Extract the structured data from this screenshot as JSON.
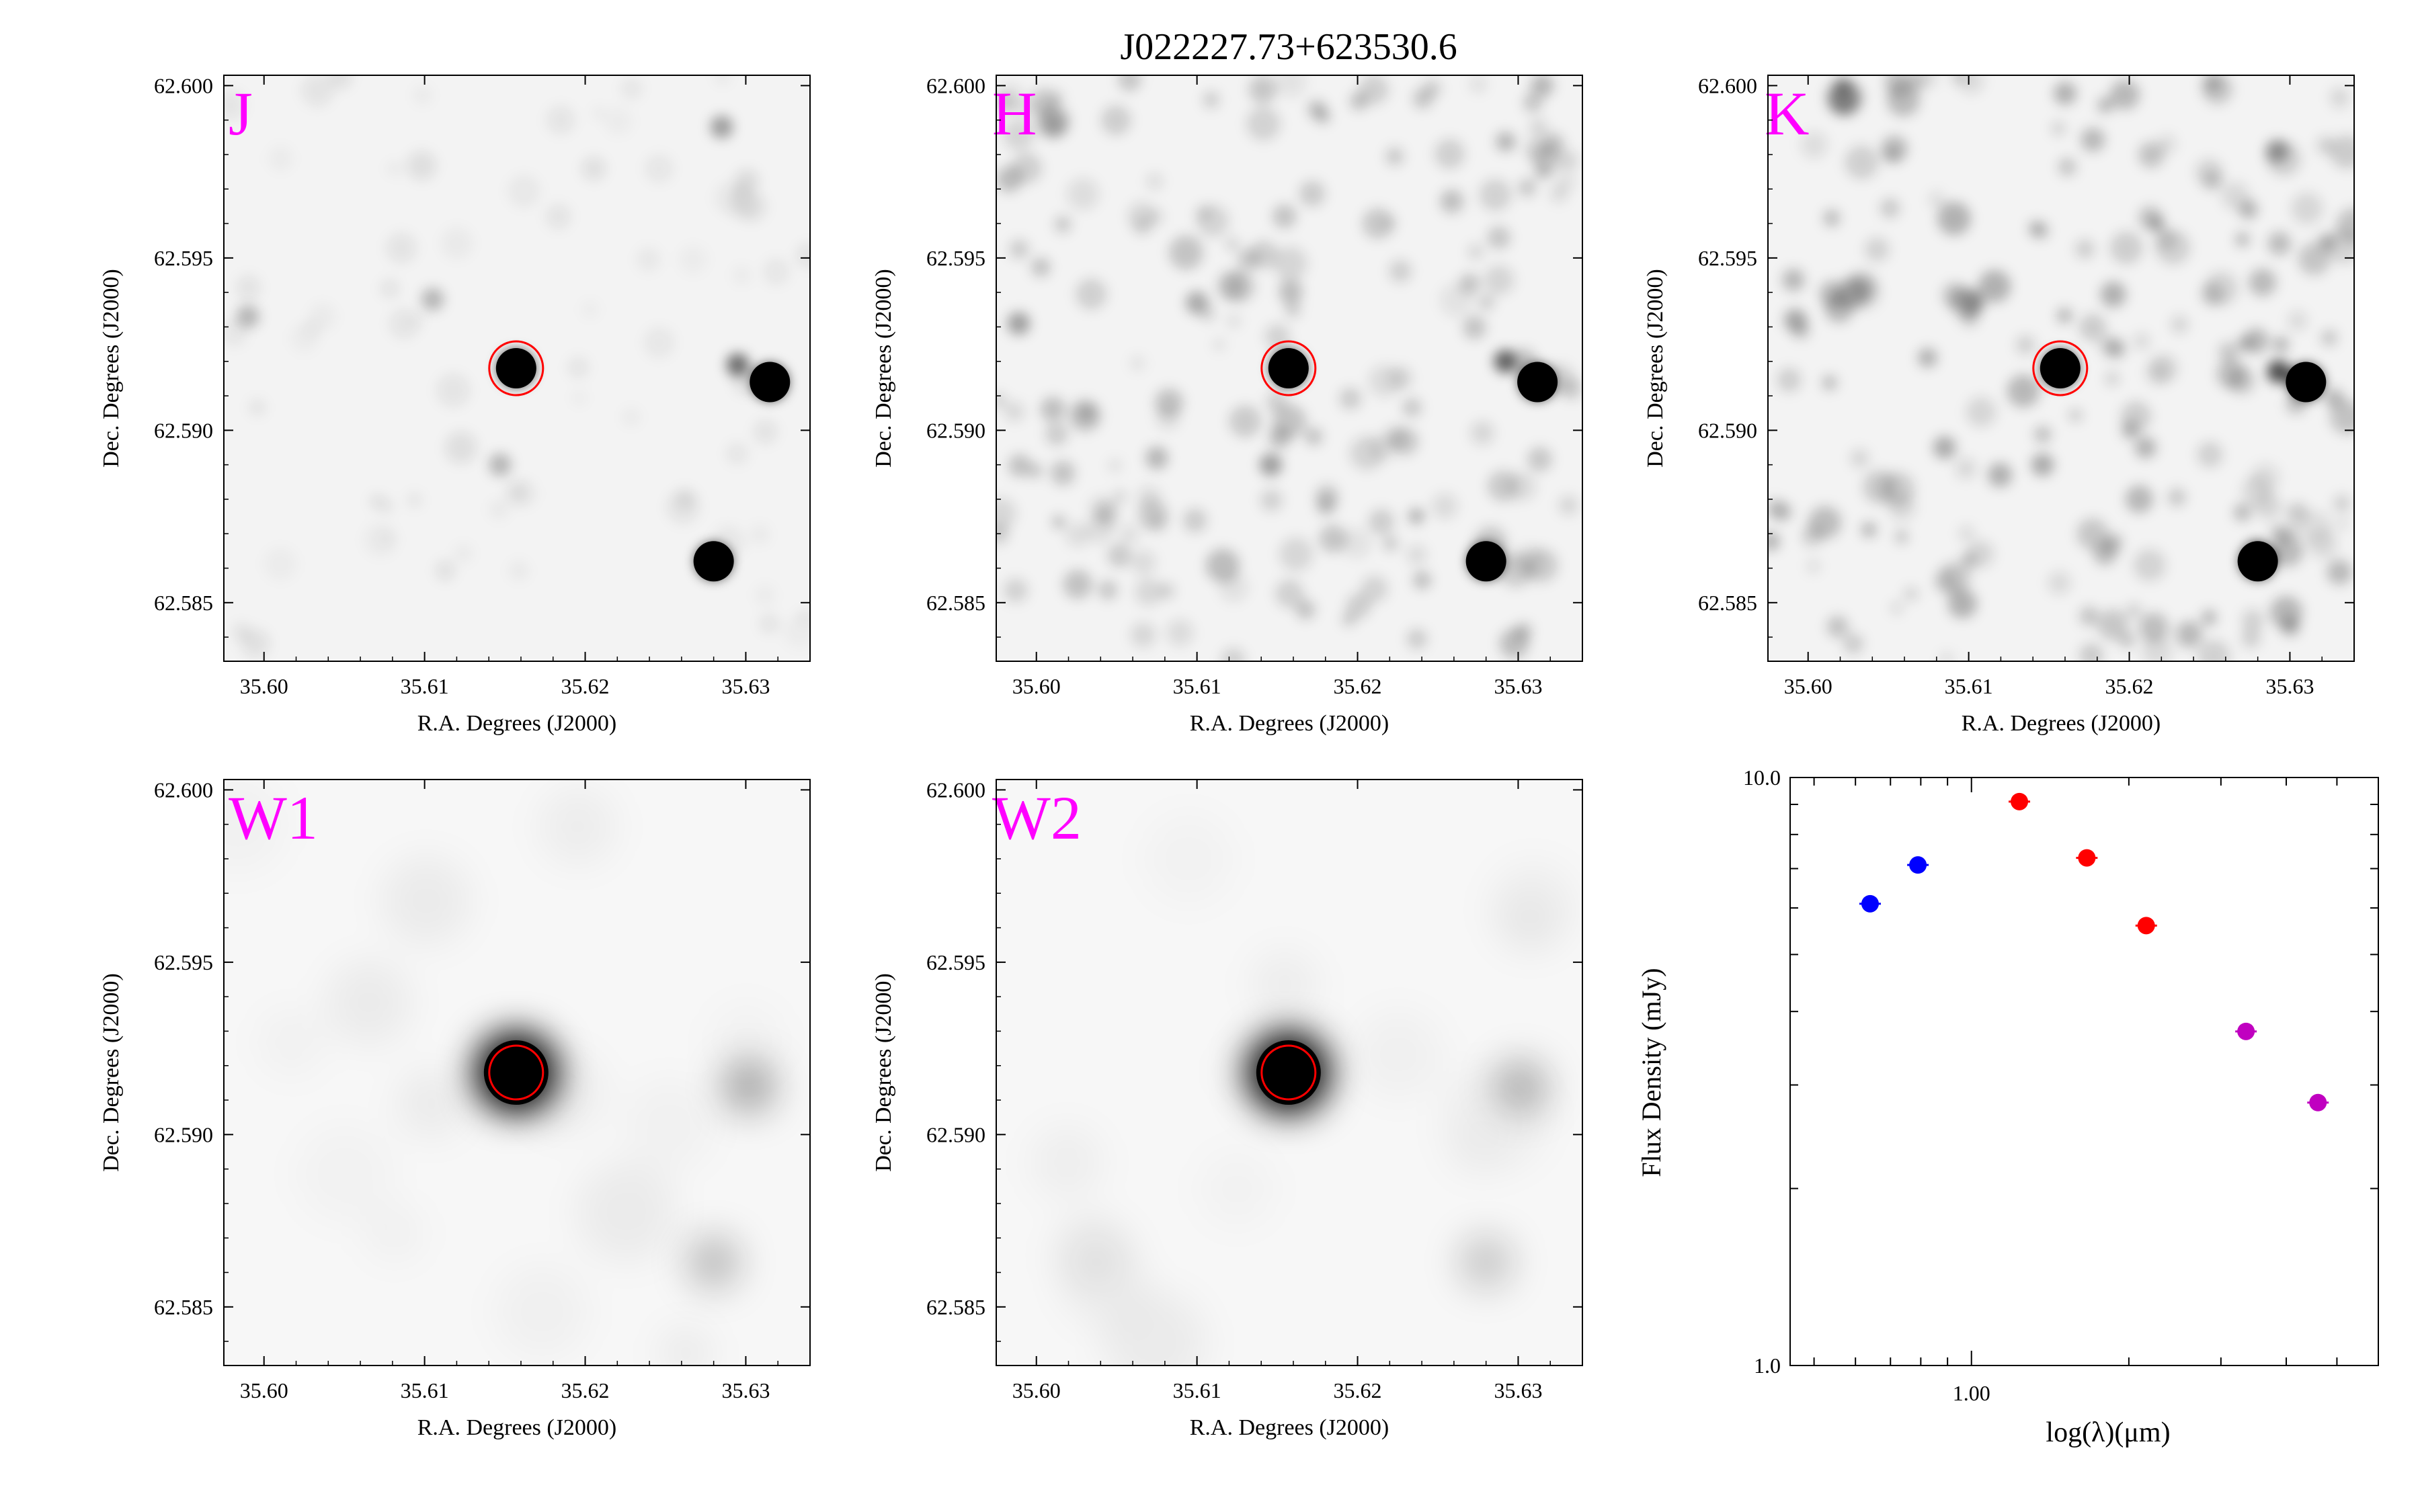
{
  "title": "J022227.73+623530.6",
  "colors": {
    "band_label": "#ff00ff",
    "aperture": "#ff0000",
    "sed_optical": "#0000ff",
    "sed_2mass": "#ff0000",
    "sed_wise": "#c000c0"
  },
  "chart_data": [
    {
      "type": "heatmap",
      "panel": "J",
      "band_label": "J",
      "xlabel": "R.A. Degrees (J2000)",
      "ylabel": "Dec. Degrees (J2000)",
      "xlim": [
        35.5975,
        35.634
      ],
      "ylim": [
        62.5833,
        62.6003
      ],
      "xticks": [
        "35.60",
        "35.61",
        "35.62",
        "35.63"
      ],
      "yticks": [
        "62.585",
        "62.590",
        "62.595",
        "62.600"
      ],
      "target": {
        "ra": 35.6157,
        "dec": 62.5918
      },
      "sources": [
        {
          "ra": 35.6157,
          "dec": 62.5918,
          "intensity": 1.0
        },
        {
          "ra": 35.6315,
          "dec": 62.5914,
          "intensity": 0.95
        },
        {
          "ra": 35.6295,
          "dec": 62.5919,
          "intensity": 0.55
        },
        {
          "ra": 35.628,
          "dec": 62.5862,
          "intensity": 0.95
        },
        {
          "ra": 35.6285,
          "dec": 62.5988,
          "intensity": 0.35
        },
        {
          "ra": 35.6105,
          "dec": 62.5938,
          "intensity": 0.25
        },
        {
          "ra": 35.599,
          "dec": 62.5933,
          "intensity": 0.25
        },
        {
          "ra": 35.6147,
          "dec": 62.589,
          "intensity": 0.25
        }
      ]
    },
    {
      "type": "heatmap",
      "panel": "H",
      "band_label": "H",
      "xlabel": "R.A. Degrees (J2000)",
      "ylabel": "Dec. Degrees (J2000)",
      "xlim": [
        35.5975,
        35.634
      ],
      "ylim": [
        62.5833,
        62.6003
      ],
      "xticks": [
        "35.60",
        "35.61",
        "35.62",
        "35.63"
      ],
      "yticks": [
        "62.585",
        "62.590",
        "62.595",
        "62.600"
      ],
      "target": {
        "ra": 35.6157,
        "dec": 62.5918
      },
      "sources": [
        {
          "ra": 35.6157,
          "dec": 62.5918,
          "intensity": 1.0
        },
        {
          "ra": 35.6312,
          "dec": 62.5914,
          "intensity": 0.95
        },
        {
          "ra": 35.6292,
          "dec": 62.592,
          "intensity": 0.6
        },
        {
          "ra": 35.628,
          "dec": 62.5862,
          "intensity": 0.95
        },
        {
          "ra": 35.61,
          "dec": 62.5937,
          "intensity": 0.3
        },
        {
          "ra": 35.5989,
          "dec": 62.5931,
          "intensity": 0.35
        },
        {
          "ra": 35.6146,
          "dec": 62.589,
          "intensity": 0.35
        },
        {
          "ra": 35.6075,
          "dec": 62.5892,
          "intensity": 0.25
        },
        {
          "ra": 35.6315,
          "dec": 62.6,
          "intensity": 0.25
        }
      ]
    },
    {
      "type": "heatmap",
      "panel": "K",
      "band_label": "K",
      "xlabel": "R.A. Degrees (J2000)",
      "ylabel": "Dec. Degrees (J2000)",
      "xlim": [
        35.5975,
        35.634
      ],
      "ylim": [
        62.5833,
        62.6003
      ],
      "xticks": [
        "35.60",
        "35.61",
        "35.62",
        "35.63"
      ],
      "yticks": [
        "62.585",
        "62.590",
        "62.595",
        "62.600"
      ],
      "target": {
        "ra": 35.6157,
        "dec": 62.5918
      },
      "sources": [
        {
          "ra": 35.6157,
          "dec": 62.5918,
          "intensity": 1.0
        },
        {
          "ra": 35.631,
          "dec": 62.5914,
          "intensity": 0.95
        },
        {
          "ra": 35.6293,
          "dec": 62.5917,
          "intensity": 0.7
        },
        {
          "ra": 35.628,
          "dec": 62.5862,
          "intensity": 0.9
        },
        {
          "ra": 35.6292,
          "dec": 62.5981,
          "intensity": 0.35
        },
        {
          "ra": 35.6103,
          "dec": 62.5937,
          "intensity": 0.3
        },
        {
          "ra": 35.5992,
          "dec": 62.5932,
          "intensity": 0.3
        },
        {
          "ra": 35.6146,
          "dec": 62.589,
          "intensity": 0.3
        },
        {
          "ra": 35.6085,
          "dec": 62.5895,
          "intensity": 0.3
        }
      ]
    },
    {
      "type": "heatmap",
      "panel": "W1",
      "band_label": "W1",
      "xlabel": "R.A. Degrees (J2000)",
      "ylabel": "Dec. Degrees (J2000)",
      "xlim": [
        35.5975,
        35.634
      ],
      "ylim": [
        62.5833,
        62.6003
      ],
      "xticks": [
        "35.60",
        "35.61",
        "35.62",
        "35.63"
      ],
      "yticks": [
        "62.585",
        "62.590",
        "62.595",
        "62.600"
      ],
      "target": {
        "ra": 35.6157,
        "dec": 62.5918
      },
      "sources": [
        {
          "ra": 35.6157,
          "dec": 62.5918,
          "intensity": 1.0
        },
        {
          "ra": 35.6302,
          "dec": 62.5914,
          "intensity": 0.3
        },
        {
          "ra": 35.628,
          "dec": 62.5863,
          "intensity": 0.22
        }
      ]
    },
    {
      "type": "heatmap",
      "panel": "W2",
      "band_label": "W2",
      "xlabel": "R.A. Degrees (J2000)",
      "ylabel": "Dec. Degrees (J2000)",
      "xlim": [
        35.5975,
        35.634
      ],
      "ylim": [
        62.5833,
        62.6003
      ],
      "xticks": [
        "35.60",
        "35.61",
        "35.62",
        "35.63"
      ],
      "yticks": [
        "62.585",
        "62.590",
        "62.595",
        "62.600"
      ],
      "target": {
        "ra": 35.6157,
        "dec": 62.5918
      },
      "sources": [
        {
          "ra": 35.6157,
          "dec": 62.5918,
          "intensity": 1.0
        },
        {
          "ra": 35.6302,
          "dec": 62.5914,
          "intensity": 0.25
        },
        {
          "ra": 35.628,
          "dec": 62.5863,
          "intensity": 0.18
        }
      ]
    },
    {
      "type": "scatter",
      "panel": "SED",
      "xlabel": "log(λ)(μm)",
      "ylabel": "Flux Density (mJy)",
      "xscale": "log",
      "yscale": "log",
      "xlim": [
        0.45,
        6.0
      ],
      "ylim": [
        1.0,
        10.0
      ],
      "xticks": [
        "1.00"
      ],
      "yticks": [
        "1.0",
        "10.0"
      ],
      "series": [
        {
          "color": "#0000ff",
          "points": [
            {
              "x": 0.64,
              "y": 6.1
            },
            {
              "x": 0.79,
              "y": 7.1
            }
          ]
        },
        {
          "color": "#ff0000",
          "points": [
            {
              "x": 1.235,
              "y": 9.1
            },
            {
              "x": 1.662,
              "y": 7.3
            },
            {
              "x": 2.159,
              "y": 5.6
            }
          ]
        },
        {
          "color": "#c000c0",
          "points": [
            {
              "x": 3.35,
              "y": 3.7
            },
            {
              "x": 4.6,
              "y": 2.8
            }
          ]
        }
      ]
    }
  ]
}
